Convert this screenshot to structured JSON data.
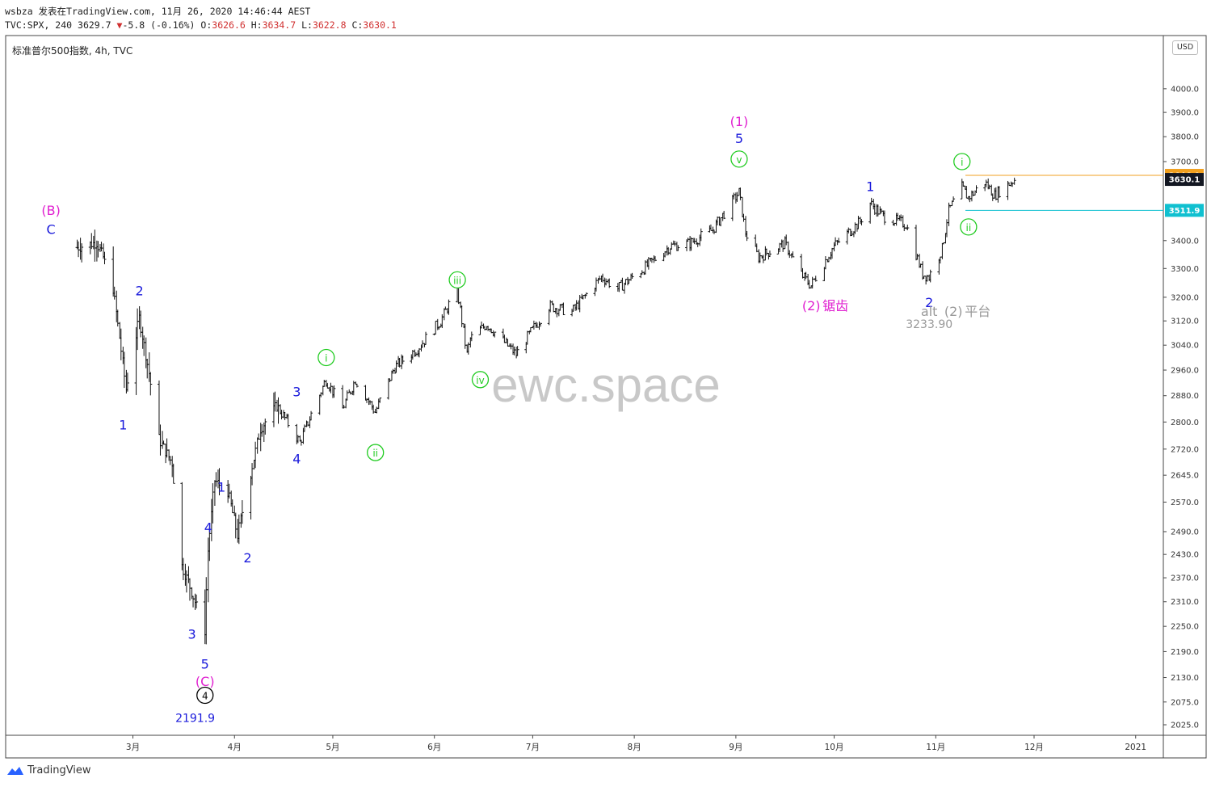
{
  "header": {
    "line1": "wsbza 发表在TradingView.com, 11月 26, 2020 14:46:44 AEST",
    "symbol": "TVC:SPX, 240",
    "last": "3629.7",
    "arrow": "▼",
    "change": "-5.8 (-0.16%)",
    "o_label": "O:",
    "o": "3626.6",
    "h_label": "H:",
    "h": "3634.7",
    "l_label": "L:",
    "l": "3622.8",
    "c_label": "C:",
    "c": "3630.1"
  },
  "pane_title": "标准普尔500指数, 4h, TVC",
  "currency": "USD",
  "watermark": "ewc.space",
  "footer_brand": "TradingView",
  "colors": {
    "magenta": "#e020d0",
    "blue": "#1a1adb",
    "green": "#22cc22",
    "gray": "#999999",
    "orange": "#f0a020",
    "cyan": "#10c0d0",
    "navy_tag": "#131722",
    "bar": "#111111"
  },
  "chart_data": {
    "type": "ohlc",
    "symbol": "TVC:SPX",
    "interval": "4h",
    "y_scale": "log",
    "x_ticks": [
      "3月",
      "4月",
      "5月",
      "6月",
      "7月",
      "8月",
      "9月",
      "10月",
      "11月",
      "12月",
      "2021"
    ],
    "y_ticks": [
      "4000.0",
      "3900.0",
      "3800.0",
      "3700.0",
      "3400.0",
      "3300.0",
      "3200.0",
      "3120.0",
      "3040.0",
      "2960.0",
      "2880.0",
      "2800.0",
      "2720.0",
      "2645.0",
      "2570.0",
      "2490.0",
      "2430.0",
      "2370.0",
      "2310.0",
      "2250.0",
      "2190.0",
      "2130.0",
      "2075.0",
      "2025.0"
    ],
    "price_tags": [
      {
        "value": "3646.0",
        "color": "#f0a020",
        "hline": true
      },
      {
        "value": "3630.1",
        "color": "#131722",
        "hline": false
      },
      {
        "value": "3511.9",
        "color": "#10c0d0",
        "hline": true
      }
    ],
    "waypoints": [
      {
        "date": "2020-02-13",
        "close": 3375
      },
      {
        "date": "2020-02-19",
        "close": 3393
      },
      {
        "date": "2020-02-21",
        "close": 3340
      },
      {
        "date": "2020-02-24",
        "close": 3230
      },
      {
        "date": "2020-02-28",
        "close": 2900
      },
      {
        "date": "2020-03-03",
        "close": 3130
      },
      {
        "date": "2020-03-06",
        "close": 2950
      },
      {
        "date": "2020-03-09",
        "close": 2750
      },
      {
        "date": "2020-03-13",
        "close": 2680
      },
      {
        "date": "2020-03-16",
        "close": 2400
      },
      {
        "date": "2020-03-18",
        "close": 2360
      },
      {
        "date": "2020-03-20",
        "close": 2310
      },
      {
        "date": "2020-03-23",
        "close": 2240
      },
      {
        "date": "2020-03-24",
        "close": 2440
      },
      {
        "date": "2020-03-26",
        "close": 2630
      },
      {
        "date": "2020-03-30",
        "close": 2600
      },
      {
        "date": "2020-04-02",
        "close": 2480
      },
      {
        "date": "2020-04-06",
        "close": 2650
      },
      {
        "date": "2020-04-09",
        "close": 2780
      },
      {
        "date": "2020-04-14",
        "close": 2850
      },
      {
        "date": "2020-04-21",
        "close": 2740
      },
      {
        "date": "2020-04-29",
        "close": 2930
      },
      {
        "date": "2020-05-04",
        "close": 2840
      },
      {
        "date": "2020-05-08",
        "close": 2930
      },
      {
        "date": "2020-05-14",
        "close": 2830
      },
      {
        "date": "2020-05-20",
        "close": 2970
      },
      {
        "date": "2020-05-27",
        "close": 3030
      },
      {
        "date": "2020-06-03",
        "close": 3120
      },
      {
        "date": "2020-06-08",
        "close": 3230
      },
      {
        "date": "2020-06-11",
        "close": 3010
      },
      {
        "date": "2020-06-12",
        "close": 3060
      },
      {
        "date": "2020-06-17",
        "close": 3110
      },
      {
        "date": "2020-06-26",
        "close": 3010
      },
      {
        "date": "2020-07-06",
        "close": 3170
      },
      {
        "date": "2020-07-13",
        "close": 3150
      },
      {
        "date": "2020-07-22",
        "close": 3270
      },
      {
        "date": "2020-07-27",
        "close": 3230
      },
      {
        "date": "2020-08-04",
        "close": 3300
      },
      {
        "date": "2020-08-12",
        "close": 3380
      },
      {
        "date": "2020-08-18",
        "close": 3390
      },
      {
        "date": "2020-08-25",
        "close": 3440
      },
      {
        "date": "2020-09-02",
        "close": 3580
      },
      {
        "date": "2020-09-04",
        "close": 3430
      },
      {
        "date": "2020-09-08",
        "close": 3340
      },
      {
        "date": "2020-09-16",
        "close": 3390
      },
      {
        "date": "2020-09-21",
        "close": 3280
      },
      {
        "date": "2020-09-24",
        "close": 3240
      },
      {
        "date": "2020-10-01",
        "close": 3380
      },
      {
        "date": "2020-10-09",
        "close": 3470
      },
      {
        "date": "2020-10-12",
        "close": 3540
      },
      {
        "date": "2020-10-16",
        "close": 3490
      },
      {
        "date": "2020-10-23",
        "close": 3460
      },
      {
        "date": "2020-10-28",
        "close": 3280
      },
      {
        "date": "2020-10-30",
        "close": 3270
      },
      {
        "date": "2020-11-03",
        "close": 3370
      },
      {
        "date": "2020-11-05",
        "close": 3510
      },
      {
        "date": "2020-11-09",
        "close": 3600
      },
      {
        "date": "2020-11-11",
        "close": 3560
      },
      {
        "date": "2020-11-16",
        "close": 3620
      },
      {
        "date": "2020-11-19",
        "close": 3570
      },
      {
        "date": "2020-11-25",
        "close": 3630
      }
    ],
    "annotations": [
      {
        "text": "(B)",
        "color": "magenta",
        "date": "2020-02-05",
        "price": 3510
      },
      {
        "text": "C",
        "color": "blue",
        "date": "2020-02-05",
        "price": 3440
      },
      {
        "text": "2",
        "color": "blue",
        "date": "2020-03-03",
        "price": 3220
      },
      {
        "text": "1",
        "color": "blue",
        "date": "2020-02-27",
        "price": 2790
      },
      {
        "text": "1",
        "color": "blue",
        "date": "2020-03-28",
        "price": 2610
      },
      {
        "text": "4",
        "color": "blue",
        "date": "2020-03-24",
        "price": 2500
      },
      {
        "text": "2",
        "color": "blue",
        "date": "2020-04-05",
        "price": 2420
      },
      {
        "text": "3",
        "color": "blue",
        "date": "2020-03-19",
        "price": 2230
      },
      {
        "text": "5",
        "color": "blue",
        "date": "2020-03-23",
        "price": 2160
      },
      {
        "text": "(C)",
        "color": "magenta",
        "date": "2020-03-23",
        "price": 2120
      },
      {
        "text": "2191.9",
        "color": "blue",
        "date": "2020-03-20",
        "price": 2040
      },
      {
        "text": "3",
        "color": "blue",
        "date": "2020-04-20",
        "price": 2890
      },
      {
        "text": "4",
        "color": "blue",
        "date": "2020-04-20",
        "price": 2690
      },
      {
        "text": "i",
        "color": "green",
        "circled": true,
        "date": "2020-04-29",
        "price": 3000
      },
      {
        "text": "ii",
        "color": "green",
        "circled": true,
        "date": "2020-05-14",
        "price": 2710
      },
      {
        "text": "iii",
        "color": "green",
        "circled": true,
        "date": "2020-06-08",
        "price": 3260
      },
      {
        "text": "iv",
        "color": "green",
        "circled": true,
        "date": "2020-06-15",
        "price": 2930
      },
      {
        "text": "(1)",
        "color": "magenta",
        "date": "2020-09-02",
        "price": 3860
      },
      {
        "text": "5",
        "color": "blue",
        "date": "2020-09-02",
        "price": 3790
      },
      {
        "text": "v",
        "color": "green",
        "circled": true,
        "date": "2020-09-02",
        "price": 3710
      },
      {
        "text": "(2)",
        "color": "magenta",
        "date": "2020-09-24",
        "price": 3170
      },
      {
        "text": "锯齿",
        "color": "magenta",
        "date": "2020-09-24",
        "price": 3170
      },
      {
        "text": "1",
        "color": "blue",
        "date": "2020-10-12",
        "price": 3600
      },
      {
        "text": "2",
        "color": "blue",
        "date": "2020-10-30",
        "price": 3180
      },
      {
        "text": "alt",
        "color": "gray",
        "date": "2020-10-30",
        "price": 3150
      },
      {
        "text": "(2)",
        "color": "gray",
        "date": "2020-10-30",
        "price": 3150
      },
      {
        "text": "平台",
        "color": "gray",
        "date": "2020-10-30",
        "price": 3150
      },
      {
        "text": "3233.90",
        "color": "gray",
        "date": "2020-10-30",
        "price": 3110
      },
      {
        "text": "i",
        "color": "green",
        "circled": true,
        "date": "2020-11-09",
        "price": 3700
      },
      {
        "text": "ii",
        "color": "green",
        "circled": true,
        "date": "2020-11-11",
        "price": 3450
      },
      {
        "text": "4",
        "color": "black",
        "circled": true,
        "date": "2020-03-23",
        "price": 2090
      }
    ]
  }
}
